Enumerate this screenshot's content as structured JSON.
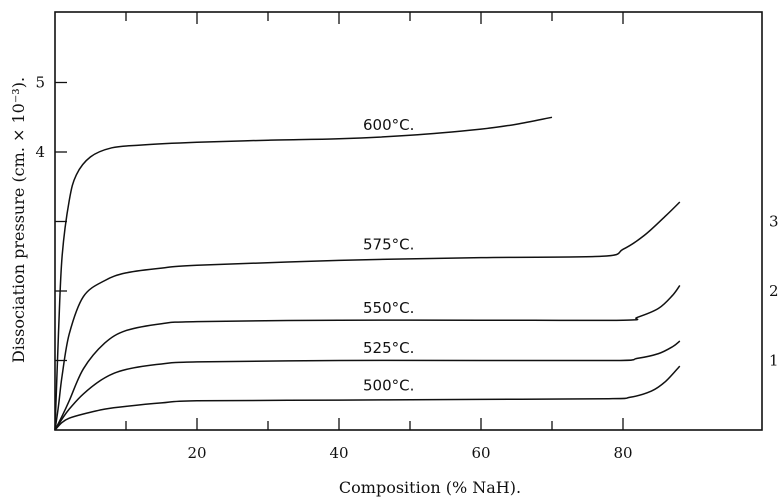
{
  "chart_data": {
    "type": "line",
    "xlabel": "Composition (% NaH).",
    "ylabel": "Dissociation pressure (cm. × 10⁻³).",
    "xlim": [
      0,
      88
    ],
    "ylim": [
      0,
      5.9
    ],
    "x_ticks_major": [
      20,
      40,
      60,
      80
    ],
    "x_ticks_minor": [
      10,
      30,
      50,
      70
    ],
    "y_tick_labels_left": [
      4,
      5
    ],
    "y_ticks_left": [
      1,
      2,
      3,
      4,
      5
    ],
    "y_tick_labels_right": [
      1,
      2,
      3
    ],
    "y_tick_labels_right_clipped": [
      "1",
      "2",
      "3"
    ],
    "grid": false,
    "series": [
      {
        "name": "500°C.",
        "x": [
          0,
          1,
          2,
          4,
          7,
          10,
          15,
          20,
          40,
          60,
          78,
          81,
          84,
          86,
          88
        ],
        "y": [
          0,
          0.11,
          0.17,
          0.23,
          0.3,
          0.34,
          0.39,
          0.42,
          0.43,
          0.44,
          0.45,
          0.47,
          0.56,
          0.7,
          0.92
        ]
      },
      {
        "name": "525°C.",
        "x": [
          0,
          1,
          2,
          4,
          7,
          10,
          15,
          20,
          40,
          60,
          79,
          82,
          85,
          87,
          88
        ],
        "y": [
          0,
          0.16,
          0.3,
          0.52,
          0.75,
          0.87,
          0.95,
          0.98,
          1.0,
          1.0,
          1.0,
          1.03,
          1.1,
          1.2,
          1.28
        ]
      },
      {
        "name": "550°C.",
        "x": [
          0,
          1,
          2,
          4,
          7,
          10,
          15,
          20,
          40,
          60,
          80,
          82,
          85,
          87,
          88
        ],
        "y": [
          0,
          0.2,
          0.42,
          0.88,
          1.25,
          1.43,
          1.53,
          1.56,
          1.58,
          1.58,
          1.58,
          1.62,
          1.75,
          1.94,
          2.08
        ]
      },
      {
        "name": "575°C.",
        "x": [
          0,
          0.5,
          1,
          2,
          4,
          7,
          10,
          15,
          20,
          40,
          60,
          77,
          80,
          83,
          86,
          88
        ],
        "y": [
          0,
          0.35,
          0.78,
          1.38,
          1.92,
          2.15,
          2.26,
          2.33,
          2.37,
          2.44,
          2.48,
          2.5,
          2.6,
          2.8,
          3.08,
          3.28
        ]
      },
      {
        "name": "600°C.",
        "x": [
          0,
          0.5,
          1,
          2,
          3,
          5,
          8,
          12,
          20,
          30,
          40,
          50,
          60,
          65,
          70
        ],
        "y": [
          0,
          1.4,
          2.5,
          3.3,
          3.67,
          3.93,
          4.06,
          4.1,
          4.14,
          4.17,
          4.19,
          4.24,
          4.33,
          4.4,
          4.5
        ]
      }
    ]
  }
}
